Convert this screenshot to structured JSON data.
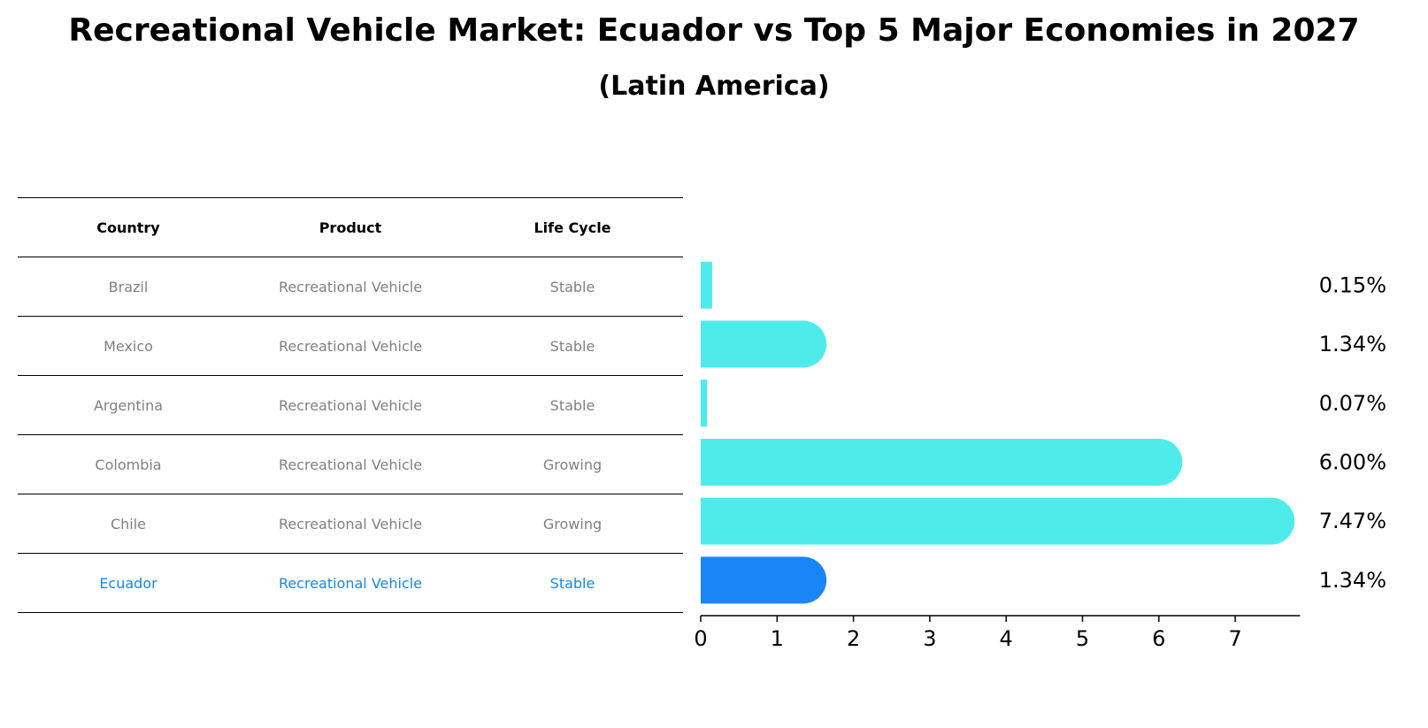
{
  "title": "Recreational Vehicle Market: Ecuador vs Top 5 Major Economies in 2027",
  "subtitle": "(Latin America)",
  "table": {
    "headers": [
      "Country",
      "Product",
      "Life Cycle"
    ],
    "rows": [
      {
        "country": "Brazil",
        "product": "Recreational Vehicle",
        "life_cycle": "Stable"
      },
      {
        "country": "Mexico",
        "product": "Recreational Vehicle",
        "life_cycle": "Stable"
      },
      {
        "country": "Argentina",
        "product": "Recreational Vehicle",
        "life_cycle": "Stable"
      },
      {
        "country": "Colombia",
        "product": "Recreational Vehicle",
        "life_cycle": "Growing"
      },
      {
        "country": "Chile",
        "product": "Recreational Vehicle",
        "life_cycle": "Growing"
      },
      {
        "country": "Ecuador",
        "product": "Recreational Vehicle",
        "life_cycle": "Stable"
      }
    ]
  },
  "chart_data": {
    "type": "bar",
    "orientation": "horizontal",
    "categories": [
      "Brazil",
      "Mexico",
      "Argentina",
      "Colombia",
      "Chile",
      "Ecuador"
    ],
    "values": [
      0.15,
      1.34,
      0.07,
      6.0,
      7.47,
      1.34
    ],
    "value_labels": [
      "0.15%",
      "1.34%",
      "0.07%",
      "6.00%",
      "7.47%",
      "1.34%"
    ],
    "highlight": "Ecuador",
    "xticks": [
      "0",
      "1",
      "2",
      "3",
      "4",
      "5",
      "6",
      "7"
    ],
    "xlim": [
      0,
      7.85
    ],
    "grid": false,
    "colors": {
      "default": "#4deceb",
      "highlight": "#1a86f5",
      "highlight_text": "#1a86e3"
    }
  }
}
